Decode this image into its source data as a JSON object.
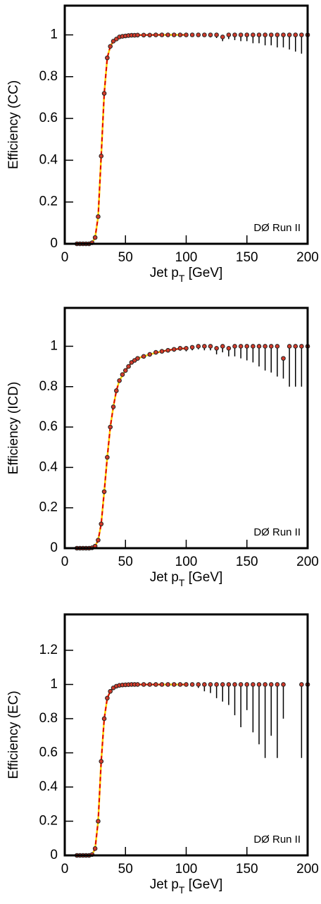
{
  "chart_data": [
    {
      "type": "scatter",
      "ylabel": "Efficiency (CC)",
      "xlabel": [
        "Jet p",
        "T",
        " [GeV]"
      ],
      "annotation": "DØ Run II",
      "xlim": [
        0,
        200
      ],
      "ylim": [
        0,
        1.14
      ],
      "xticks": [
        0,
        50,
        100,
        150,
        200
      ],
      "yticks": [
        0,
        0.2,
        0.4,
        0.6,
        0.8,
        1
      ],
      "series": [
        {
          "color": "#d23b2b",
          "x": [
            10,
            12.5,
            15,
            17.5,
            20,
            22.5,
            25,
            27.5,
            30,
            32.5,
            35,
            37.5,
            40,
            42.5,
            45,
            47.5,
            50,
            52.5,
            55,
            57.5,
            60,
            65,
            70,
            75,
            80,
            85,
            90,
            95,
            100,
            105,
            110,
            115,
            120,
            125,
            130,
            135,
            140,
            145,
            150,
            155,
            160,
            165,
            170,
            175,
            180,
            185,
            190,
            195,
            200
          ],
          "values": [
            0,
            0,
            0,
            0,
            0,
            0.005,
            0.03,
            0.13,
            0.42,
            0.72,
            0.89,
            0.945,
            0.97,
            0.98,
            0.99,
            0.993,
            0.995,
            0.997,
            0.998,
            0.998,
            0.999,
            0.999,
            0.999,
            1,
            1,
            1,
            1,
            1,
            1,
            1,
            1,
            1,
            1,
            1,
            0.99,
            1,
            1,
            1,
            1,
            1,
            1,
            1,
            1,
            1,
            1,
            1,
            1,
            1,
            1
          ],
          "errors": [
            0,
            0,
            0,
            0,
            0,
            0.003,
            0.005,
            0.01,
            0.01,
            0.01,
            0.008,
            0.005,
            0.004,
            0.003,
            0.003,
            0.003,
            0.002,
            0.002,
            0.002,
            0.002,
            0.002,
            0.002,
            0.002,
            0.002,
            0.002,
            0.003,
            0.003,
            0.004,
            0.005,
            0.006,
            0.008,
            0.01,
            0.012,
            0.015,
            0.02,
            0.02,
            0.025,
            0.03,
            0.03,
            0.04,
            0.04,
            0.05,
            0.05,
            0.06,
            0.06,
            0.07,
            0.08,
            0.09,
            0.1
          ]
        }
      ],
      "fit": {
        "color": "#ffd400",
        "dash_color": "#e00000",
        "x": [
          20,
          22.5,
          25,
          27.5,
          30,
          32.5,
          35,
          37.5,
          40,
          45,
          50,
          60,
          80,
          100
        ],
        "values": [
          0,
          0.005,
          0.03,
          0.13,
          0.42,
          0.72,
          0.89,
          0.945,
          0.97,
          0.99,
          0.995,
          0.999,
          1,
          1
        ]
      }
    },
    {
      "type": "scatter",
      "ylabel": "Efficiency (ICD)",
      "xlabel": [
        "Jet p",
        "T",
        " [GeV]"
      ],
      "annotation": "DØ Run II",
      "xlim": [
        0,
        200
      ],
      "ylim": [
        0,
        1.19
      ],
      "xticks": [
        0,
        50,
        100,
        150,
        200
      ],
      "yticks": [
        0,
        0.2,
        0.4,
        0.6,
        0.8,
        1
      ],
      "series": [
        {
          "color": "#d23b2b",
          "x": [
            10,
            12.5,
            15,
            17.5,
            20,
            22.5,
            25,
            27.5,
            30,
            32.5,
            35,
            37.5,
            40,
            42.5,
            45,
            47.5,
            50,
            52.5,
            55,
            57.5,
            60,
            65,
            70,
            75,
            80,
            85,
            90,
            95,
            100,
            105,
            110,
            115,
            120,
            125,
            130,
            135,
            140,
            145,
            150,
            155,
            160,
            165,
            170,
            175,
            180,
            185,
            190,
            195,
            200
          ],
          "values": [
            0,
            0,
            0,
            0,
            0,
            0.002,
            0.01,
            0.04,
            0.12,
            0.28,
            0.45,
            0.6,
            0.7,
            0.78,
            0.83,
            0.86,
            0.88,
            0.9,
            0.92,
            0.93,
            0.94,
            0.95,
            0.96,
            0.97,
            0.975,
            0.98,
            0.985,
            0.99,
            0.99,
            0.995,
            1,
            1,
            1,
            0.99,
            1,
            0.99,
            1,
            1,
            1,
            1,
            1,
            1,
            1,
            1,
            0.94,
            1,
            1,
            1,
            1
          ],
          "errors": [
            0,
            0,
            0,
            0,
            0,
            0.002,
            0.004,
            0.008,
            0.01,
            0.01,
            0.01,
            0.01,
            0.01,
            0.01,
            0.01,
            0.01,
            0.01,
            0.01,
            0.01,
            0.01,
            0.01,
            0.01,
            0.01,
            0.01,
            0.01,
            0.01,
            0.012,
            0.012,
            0.015,
            0.015,
            0.015,
            0.02,
            0.02,
            0.03,
            0.03,
            0.04,
            0.05,
            0.06,
            0.07,
            0.08,
            0.1,
            0.12,
            0.13,
            0.15,
            0.1,
            0.2,
            0.2,
            0.2,
            0.25
          ]
        }
      ],
      "fit": {
        "color": "#ffd400",
        "dash_color": "#e00000",
        "x": [
          22.5,
          25,
          27.5,
          30,
          32.5,
          35,
          37.5,
          40,
          42.5,
          45,
          50,
          55,
          60,
          70,
          80,
          90,
          100
        ],
        "values": [
          0.002,
          0.01,
          0.04,
          0.12,
          0.28,
          0.45,
          0.6,
          0.7,
          0.78,
          0.83,
          0.88,
          0.92,
          0.94,
          0.96,
          0.975,
          0.985,
          0.99
        ]
      }
    },
    {
      "type": "scatter",
      "ylabel": "Efficiency (EC)",
      "xlabel": [
        "Jet p",
        "T",
        " [GeV]"
      ],
      "annotation": "DØ Run II",
      "xlim": [
        0,
        200
      ],
      "ylim": [
        0,
        1.41
      ],
      "xticks": [
        0,
        50,
        100,
        150,
        200
      ],
      "yticks": [
        0,
        0.2,
        0.4,
        0.6,
        0.8,
        1,
        1.2
      ],
      "series": [
        {
          "color": "#d23b2b",
          "x": [
            10,
            12.5,
            15,
            17.5,
            20,
            22.5,
            25,
            27.5,
            30,
            32.5,
            35,
            37.5,
            40,
            42.5,
            45,
            47.5,
            50,
            52.5,
            55,
            57.5,
            60,
            65,
            70,
            75,
            80,
            85,
            90,
            95,
            100,
            105,
            110,
            115,
            120,
            125,
            130,
            135,
            140,
            145,
            150,
            155,
            160,
            165,
            170,
            175,
            180,
            185,
            190,
            195,
            200
          ],
          "values": [
            0,
            0,
            0,
            0,
            0,
            0.005,
            0.04,
            0.2,
            0.55,
            0.8,
            0.92,
            0.96,
            0.98,
            0.99,
            0.995,
            0.997,
            0.998,
            0.999,
            1,
            1,
            1,
            1,
            1,
            1,
            1,
            1,
            1,
            1,
            1,
            1,
            1,
            1,
            1,
            1,
            1,
            1,
            1,
            1,
            1,
            1,
            1,
            1,
            1,
            1,
            1,
            null,
            null,
            1,
            1
          ],
          "errors": [
            0,
            0,
            0,
            0,
            0,
            0.003,
            0.006,
            0.01,
            0.01,
            0.01,
            0.008,
            0.006,
            0.004,
            0.003,
            0.002,
            0.002,
            0.002,
            0.002,
            0.002,
            0.002,
            0.002,
            0.002,
            0.002,
            0.003,
            0.003,
            0.003,
            0.004,
            0.004,
            0.005,
            0.01,
            0.02,
            0.04,
            0.05,
            0.08,
            0.1,
            0.12,
            0.18,
            0.25,
            0.15,
            0.28,
            0.35,
            0.43,
            0.3,
            0.43,
            0.2,
            null,
            null,
            0.43,
            0.43
          ]
        }
      ],
      "fit": {
        "color": "#ffd400",
        "dash_color": "#e00000",
        "x": [
          20,
          22.5,
          25,
          27.5,
          30,
          32.5,
          35,
          37.5,
          40,
          45,
          50,
          60,
          80,
          100
        ],
        "values": [
          0,
          0.005,
          0.04,
          0.2,
          0.55,
          0.8,
          0.92,
          0.96,
          0.98,
          0.995,
          0.998,
          1,
          1,
          1
        ]
      }
    }
  ]
}
